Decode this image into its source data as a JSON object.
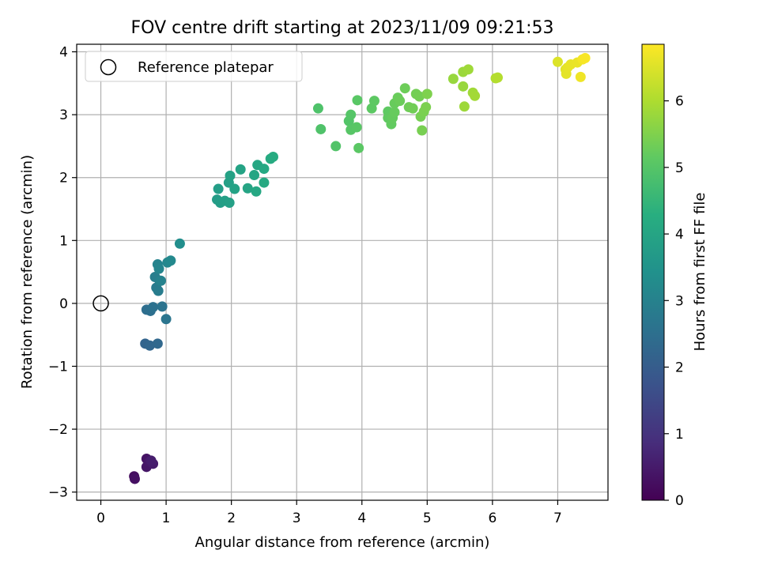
{
  "chart_data": {
    "type": "scatter",
    "title": "FOV centre drift starting at 2023/11/09 09:21:53",
    "xlabel": "Angular distance from reference (arcmin)",
    "ylabel": "Rotation from reference (arcmin)",
    "xlim": [
      -0.37,
      7.77
    ],
    "ylim": [
      -3.13,
      4.12
    ],
    "xticks": [
      0,
      1,
      2,
      3,
      4,
      5,
      6,
      7
    ],
    "yticks": [
      -3,
      -2,
      -1,
      0,
      1,
      2,
      3,
      4
    ],
    "grid": true,
    "legend": {
      "position": "top-left",
      "entries": [
        "Reference platepar"
      ]
    },
    "reference_point": {
      "x": 0,
      "y": 0,
      "label": "Reference platepar"
    },
    "colorbar": {
      "label": "Hours from first FF file",
      "colormap": "viridis",
      "range": [
        0,
        6.85
      ],
      "ticks": [
        0,
        1,
        2,
        3,
        4,
        5,
        6
      ]
    },
    "points": [
      {
        "x": 0.51,
        "y": -2.75,
        "hours": 0.25
      },
      {
        "x": 0.52,
        "y": -2.79,
        "hours": 0.3
      },
      {
        "x": 0.7,
        "y": -2.47,
        "hours": 0.35
      },
      {
        "x": 0.7,
        "y": -2.6,
        "hours": 0.4
      },
      {
        "x": 0.74,
        "y": -2.52,
        "hours": 0.45
      },
      {
        "x": 0.8,
        "y": -2.55,
        "hours": 0.5
      },
      {
        "x": 0.77,
        "y": -2.5,
        "hours": 0.55
      },
      {
        "x": 0.68,
        "y": -0.64,
        "hours": 2.2
      },
      {
        "x": 0.75,
        "y": -0.67,
        "hours": 2.25
      },
      {
        "x": 0.87,
        "y": -0.64,
        "hours": 2.3
      },
      {
        "x": 0.7,
        "y": -0.1,
        "hours": 2.45
      },
      {
        "x": 0.76,
        "y": -0.12,
        "hours": 2.5
      },
      {
        "x": 0.8,
        "y": -0.06,
        "hours": 2.55
      },
      {
        "x": 0.94,
        "y": -0.05,
        "hours": 2.6
      },
      {
        "x": 1.0,
        "y": -0.25,
        "hours": 2.65
      },
      {
        "x": 0.85,
        "y": 0.25,
        "hours": 2.8
      },
      {
        "x": 0.88,
        "y": 0.2,
        "hours": 2.85
      },
      {
        "x": 0.83,
        "y": 0.42,
        "hours": 2.9
      },
      {
        "x": 0.9,
        "y": 0.36,
        "hours": 2.95
      },
      {
        "x": 0.92,
        "y": 0.36,
        "hours": 3.0
      },
      {
        "x": 0.87,
        "y": 0.62,
        "hours": 3.05
      },
      {
        "x": 0.89,
        "y": 0.55,
        "hours": 3.1
      },
      {
        "x": 1.02,
        "y": 0.65,
        "hours": 3.15
      },
      {
        "x": 1.07,
        "y": 0.68,
        "hours": 3.2
      },
      {
        "x": 1.21,
        "y": 0.95,
        "hours": 3.35
      },
      {
        "x": 1.78,
        "y": 1.65,
        "hours": 3.75
      },
      {
        "x": 1.83,
        "y": 1.6,
        "hours": 3.78
      },
      {
        "x": 1.8,
        "y": 1.82,
        "hours": 3.8
      },
      {
        "x": 1.9,
        "y": 1.63,
        "hours": 3.83
      },
      {
        "x": 1.97,
        "y": 1.6,
        "hours": 3.86
      },
      {
        "x": 1.96,
        "y": 1.92,
        "hours": 3.88
      },
      {
        "x": 1.98,
        "y": 2.03,
        "hours": 3.9
      },
      {
        "x": 2.05,
        "y": 1.82,
        "hours": 3.93
      },
      {
        "x": 2.14,
        "y": 2.13,
        "hours": 3.96
      },
      {
        "x": 2.25,
        "y": 1.83,
        "hours": 4.0
      },
      {
        "x": 2.35,
        "y": 2.04,
        "hours": 4.02
      },
      {
        "x": 2.4,
        "y": 2.2,
        "hours": 4.05
      },
      {
        "x": 2.38,
        "y": 1.78,
        "hours": 4.08
      },
      {
        "x": 2.5,
        "y": 2.14,
        "hours": 4.1
      },
      {
        "x": 2.5,
        "y": 1.92,
        "hours": 4.12
      },
      {
        "x": 2.6,
        "y": 2.3,
        "hours": 4.15
      },
      {
        "x": 2.64,
        "y": 2.33,
        "hours": 4.18
      },
      {
        "x": 3.33,
        "y": 3.1,
        "hours": 4.9
      },
      {
        "x": 3.37,
        "y": 2.77,
        "hours": 4.92
      },
      {
        "x": 3.6,
        "y": 2.5,
        "hours": 4.95
      },
      {
        "x": 3.8,
        "y": 2.9,
        "hours": 4.97
      },
      {
        "x": 3.83,
        "y": 3.0,
        "hours": 5.0
      },
      {
        "x": 3.83,
        "y": 2.76,
        "hours": 5.02
      },
      {
        "x": 3.92,
        "y": 2.8,
        "hours": 5.04
      },
      {
        "x": 3.93,
        "y": 3.23,
        "hours": 5.06
      },
      {
        "x": 3.95,
        "y": 2.47,
        "hours": 5.08
      },
      {
        "x": 4.15,
        "y": 3.1,
        "hours": 5.1
      },
      {
        "x": 4.19,
        "y": 3.22,
        "hours": 5.12
      },
      {
        "x": 4.4,
        "y": 3.05,
        "hours": 5.14
      },
      {
        "x": 4.4,
        "y": 2.95,
        "hours": 5.16
      },
      {
        "x": 4.45,
        "y": 2.85,
        "hours": 5.18
      },
      {
        "x": 4.47,
        "y": 2.95,
        "hours": 5.2
      },
      {
        "x": 4.5,
        "y": 3.04,
        "hours": 5.22
      },
      {
        "x": 4.5,
        "y": 3.18,
        "hours": 5.24
      },
      {
        "x": 4.55,
        "y": 3.27,
        "hours": 5.26
      },
      {
        "x": 4.58,
        "y": 3.22,
        "hours": 5.28
      },
      {
        "x": 4.66,
        "y": 3.42,
        "hours": 5.3
      },
      {
        "x": 4.72,
        "y": 3.12,
        "hours": 5.32
      },
      {
        "x": 4.78,
        "y": 3.1,
        "hours": 5.34
      },
      {
        "x": 4.83,
        "y": 3.33,
        "hours": 5.36
      },
      {
        "x": 4.88,
        "y": 3.29,
        "hours": 5.38
      },
      {
        "x": 4.9,
        "y": 2.97,
        "hours": 5.4
      },
      {
        "x": 4.92,
        "y": 2.75,
        "hours": 5.42
      },
      {
        "x": 4.95,
        "y": 3.05,
        "hours": 5.44
      },
      {
        "x": 4.98,
        "y": 3.12,
        "hours": 5.46
      },
      {
        "x": 5.0,
        "y": 3.33,
        "hours": 5.48
      },
      {
        "x": 5.4,
        "y": 3.57,
        "hours": 5.75
      },
      {
        "x": 5.55,
        "y": 3.45,
        "hours": 5.77
      },
      {
        "x": 5.55,
        "y": 3.68,
        "hours": 5.8
      },
      {
        "x": 5.57,
        "y": 3.13,
        "hours": 5.82
      },
      {
        "x": 5.63,
        "y": 3.72,
        "hours": 5.84
      },
      {
        "x": 5.7,
        "y": 3.35,
        "hours": 5.86
      },
      {
        "x": 5.73,
        "y": 3.3,
        "hours": 5.88
      },
      {
        "x": 6.05,
        "y": 3.58,
        "hours": 6.05
      },
      {
        "x": 6.08,
        "y": 3.59,
        "hours": 6.07
      },
      {
        "x": 7.0,
        "y": 3.84,
        "hours": 6.5
      },
      {
        "x": 7.12,
        "y": 3.72,
        "hours": 6.55
      },
      {
        "x": 7.13,
        "y": 3.65,
        "hours": 6.58
      },
      {
        "x": 7.15,
        "y": 3.75,
        "hours": 6.6
      },
      {
        "x": 7.2,
        "y": 3.8,
        "hours": 6.62
      },
      {
        "x": 7.3,
        "y": 3.83,
        "hours": 6.65
      },
      {
        "x": 7.35,
        "y": 3.6,
        "hours": 6.7
      },
      {
        "x": 7.38,
        "y": 3.88,
        "hours": 6.75
      },
      {
        "x": 7.42,
        "y": 3.9,
        "hours": 6.8
      }
    ]
  }
}
